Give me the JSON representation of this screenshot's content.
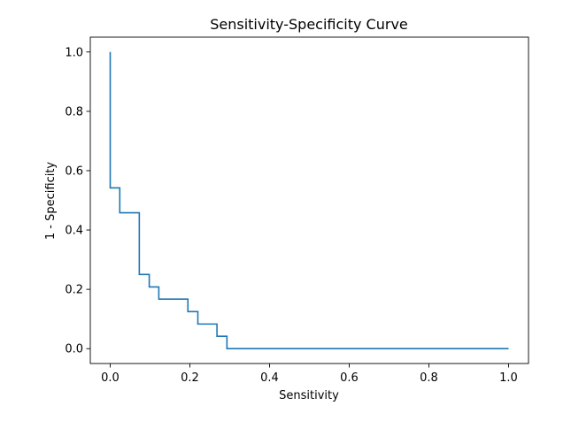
{
  "chart_data": {
    "type": "line",
    "drawstyle": "steps-post",
    "title": "Sensitivity-Specificity Curve",
    "xlabel": "Sensitivity",
    "ylabel": "1 - Specificity",
    "xlim": [
      -0.05,
      1.05
    ],
    "ylim": [
      -0.05,
      1.05
    ],
    "xticks": [
      0.0,
      0.2,
      0.4,
      0.6,
      0.8,
      1.0
    ],
    "xtick_labels": [
      "0.0",
      "0.2",
      "0.4",
      "0.6",
      "0.8",
      "1.0"
    ],
    "yticks": [
      0.0,
      0.2,
      0.4,
      0.6,
      0.8,
      1.0
    ],
    "ytick_labels": [
      "0.0",
      "0.2",
      "0.4",
      "0.6",
      "0.8",
      "1.0"
    ],
    "grid": false,
    "series": [
      {
        "name": "curve",
        "color": "#1f77b4",
        "x": [
          0.0,
          0.0,
          0.024,
          0.073,
          0.098,
          0.122,
          0.195,
          0.22,
          0.268,
          0.293,
          1.0
        ],
        "y": [
          1.0,
          0.542,
          0.458,
          0.25,
          0.208,
          0.167,
          0.125,
          0.083,
          0.042,
          0.0,
          0.0
        ]
      }
    ]
  }
}
